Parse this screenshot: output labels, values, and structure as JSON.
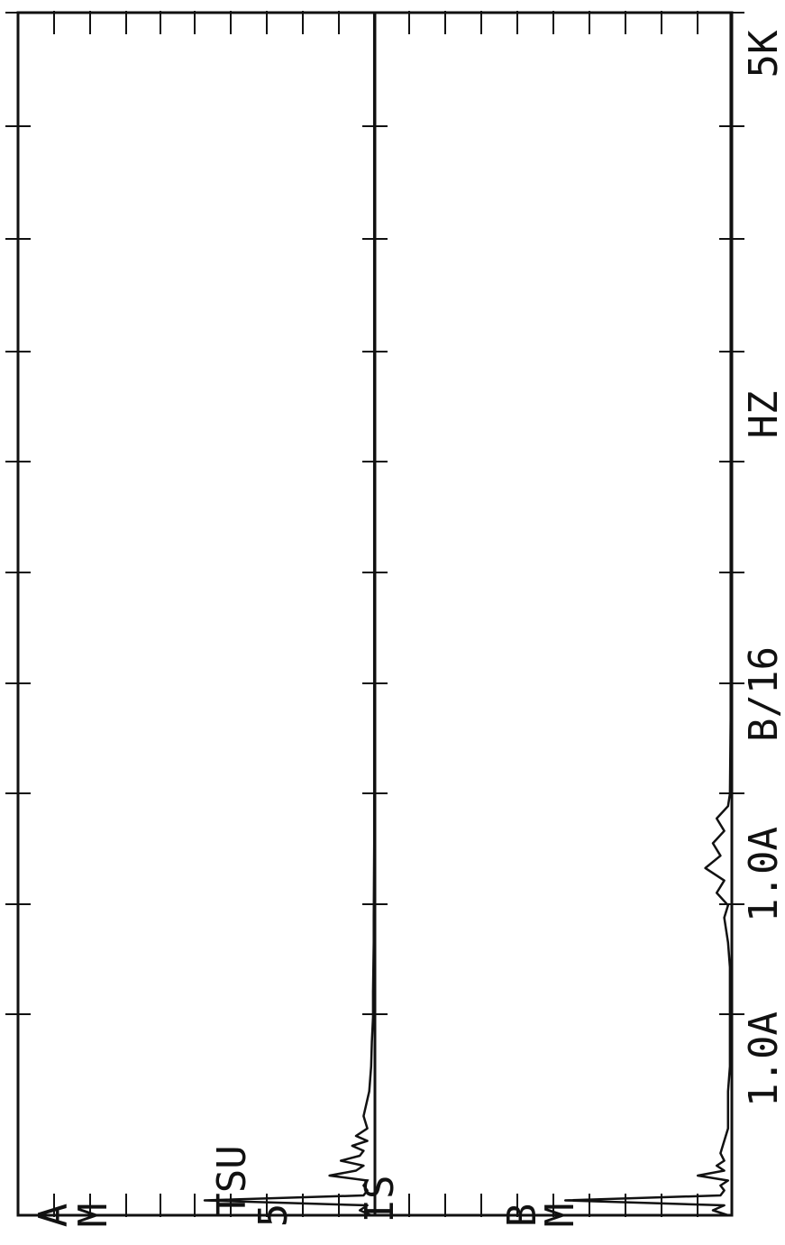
{
  "chart_data": {
    "type": "line",
    "orientation": "rotated-90",
    "panels": [
      {
        "channel_label": "A",
        "mode_label": "M",
        "trace": "A",
        "x": [
          0,
          0.02,
          0.04,
          0.06,
          0.08,
          0.1,
          0.12,
          0.14,
          0.16,
          0.18,
          0.2,
          0.22,
          0.24,
          0.26,
          0.28,
          0.3,
          0.32,
          0.35,
          0.4,
          0.5,
          0.6,
          0.7,
          0.8,
          0.9,
          1.0,
          1.1,
          1.2,
          1.5,
          2.0,
          2.5,
          3.0,
          3.5,
          4.0,
          4.5,
          5.0
        ],
        "y": [
          0.1,
          0.4,
          0.2,
          4.5,
          0.3,
          0.2,
          0.3,
          0.2,
          1.2,
          0.5,
          0.3,
          0.9,
          0.4,
          0.3,
          0.6,
          0.2,
          0.5,
          0.2,
          0.3,
          0.15,
          0.1,
          0.08,
          0.05,
          0.05,
          0.04,
          0.03,
          0.03,
          0.02,
          0.02,
          0.02,
          0.02,
          0.02,
          0.02,
          0.02,
          0.02
        ]
      },
      {
        "channel_label": "B",
        "mode_label": "M",
        "trace": "B",
        "x": [
          0,
          0.02,
          0.04,
          0.06,
          0.08,
          0.1,
          0.12,
          0.14,
          0.16,
          0.18,
          0.2,
          0.22,
          0.25,
          0.3,
          0.35,
          0.4,
          0.5,
          0.6,
          0.8,
          1.0,
          1.1,
          1.2,
          1.25,
          1.3,
          1.35,
          1.4,
          1.45,
          1.5,
          1.55,
          1.6,
          1.65,
          1.7,
          2.0,
          2.5,
          3.0,
          3.5,
          4.0,
          4.5,
          5.0
        ],
        "y": [
          0.1,
          0.5,
          0.2,
          4.4,
          0.3,
          0.2,
          0.3,
          0.1,
          0.9,
          0.2,
          0.4,
          0.2,
          0.3,
          0.2,
          0.1,
          0.1,
          0.1,
          0.05,
          0.05,
          0.05,
          0.1,
          0.2,
          0.1,
          0.4,
          0.2,
          0.7,
          0.3,
          0.5,
          0.2,
          0.4,
          0.1,
          0.05,
          0.03,
          0.03,
          0.03,
          0.03,
          0.03,
          0.03,
          0.03
        ]
      }
    ],
    "xlim": [
      0,
      5
    ],
    "xlabel": "HZ",
    "x_end_label": "5K",
    "scale_labels": [
      "1.0A",
      "1.0A",
      "B/16"
    ],
    "left_labels": [
      "TSU",
      "5",
      "IS"
    ],
    "ylim": [
      0,
      5
    ],
    "grid": false
  }
}
